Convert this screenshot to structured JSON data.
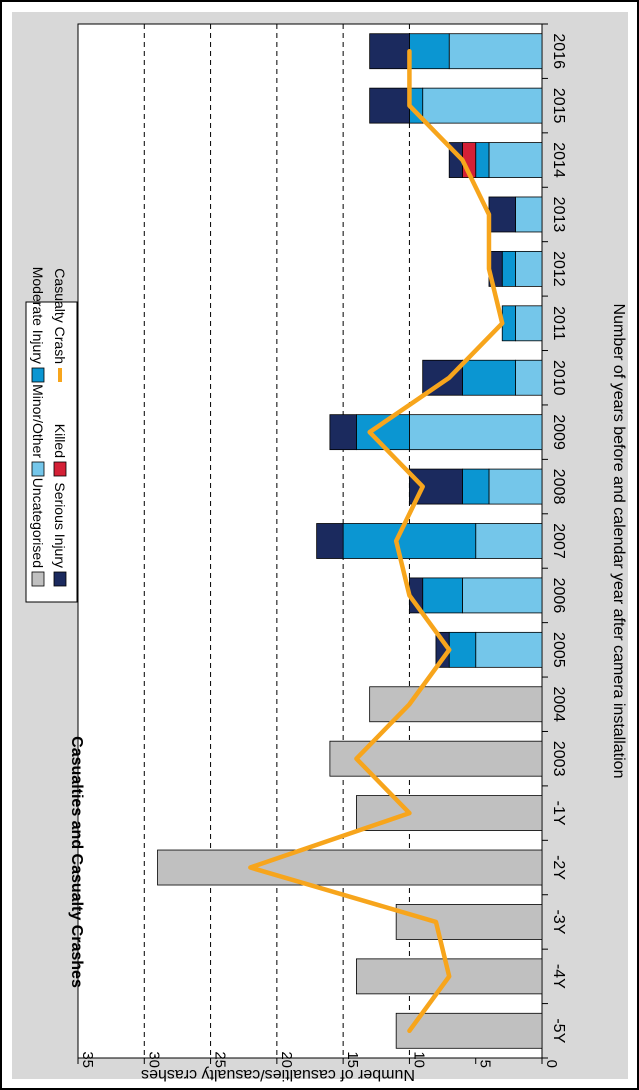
{
  "chart_data": {
    "type": "bar",
    "title": "Casualties and Casualty Crashes",
    "xlabel": "Number of years before and calendar year after camera installation",
    "ylabel": "Number of casualties/casualty crashes",
    "categories": [
      "-5Y",
      "-4Y",
      "-3Y",
      "-2Y",
      "-1Y",
      "2003",
      "2004",
      "2005",
      "2006",
      "2007",
      "2008",
      "2009",
      "2010",
      "2011",
      "2012",
      "2013",
      "2014",
      "2015",
      "2016"
    ],
    "ylim": [
      0,
      35
    ],
    "yticks": [
      0,
      5,
      10,
      15,
      20,
      25,
      30,
      35
    ],
    "grid_lines": [
      10,
      15,
      20,
      25,
      30
    ],
    "series": [
      {
        "name": "Uncategorised",
        "color": "#c0c0c0",
        "values": [
          11,
          14,
          11,
          29,
          14,
          16,
          13,
          0,
          0,
          0,
          0,
          0,
          0,
          0,
          0,
          0,
          0,
          0,
          0
        ]
      },
      {
        "name": "Minor/Other",
        "color": "#74c6ea",
        "values": [
          0,
          0,
          0,
          0,
          0,
          0,
          0,
          5,
          6,
          5,
          4,
          10,
          2,
          2,
          2,
          2,
          4,
          9,
          7
        ]
      },
      {
        "name": "Moderate Injury",
        "color": "#0b96d2",
        "values": [
          0,
          0,
          0,
          0,
          0,
          0,
          0,
          2,
          3,
          10,
          2,
          4,
          4,
          1,
          1,
          0,
          1,
          1,
          3
        ]
      },
      {
        "name": "Killed",
        "color": "#d42036",
        "values": [
          0,
          0,
          0,
          0,
          0,
          0,
          0,
          0,
          0,
          0,
          0,
          0,
          0,
          0,
          0,
          0,
          1,
          0,
          0
        ]
      },
      {
        "name": "Serious Injury",
        "color": "#1b2a5e",
        "values": [
          0,
          0,
          0,
          0,
          0,
          0,
          0,
          1,
          1,
          2,
          4,
          2,
          3,
          0,
          1,
          2,
          1,
          3,
          3
        ]
      },
      {
        "name": "Casualty Crash",
        "type": "line",
        "color": "#f7a51c",
        "values": [
          10,
          7,
          8,
          22,
          10,
          14,
          10,
          7,
          10,
          11,
          9,
          13,
          7,
          3,
          4,
          4,
          6,
          10,
          10
        ]
      }
    ],
    "legend": {
      "position": "top",
      "items": [
        "Uncategorised",
        "Serious Injury",
        "Minor/Other",
        "Killed",
        "Moderate Injury",
        "Casualty Crash"
      ]
    },
    "orientation": "rotated-90-clockwise"
  }
}
